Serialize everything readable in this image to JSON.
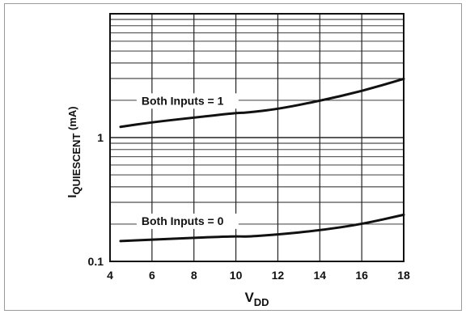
{
  "chart_data": {
    "type": "line",
    "xlabel": {
      "main": "V",
      "sub": "DD"
    },
    "ylabel": {
      "main": "I",
      "sub": "QUIESCENT",
      "unit": " (mA)"
    },
    "xlim": [
      4,
      18
    ],
    "ylim": [
      0.1,
      10
    ],
    "yscale": "log",
    "grid": true,
    "x_ticks": [
      "4",
      "6",
      "8",
      "10",
      "12",
      "14",
      "16",
      "18"
    ],
    "y_ticks": [
      "0.1",
      "1"
    ],
    "series": [
      {
        "name": "Both Inputs = 1",
        "x": [
          4.5,
          6,
          8,
          10,
          10.5,
          12,
          14,
          16,
          18
        ],
        "y": [
          1.22,
          1.33,
          1.45,
          1.58,
          1.59,
          1.7,
          1.98,
          2.37,
          2.98
        ]
      },
      {
        "name": "Both Inputs = 0",
        "x": [
          4.5,
          6,
          8,
          10,
          10.5,
          12,
          14,
          16,
          18
        ],
        "y": [
          0.146,
          0.15,
          0.155,
          0.16,
          0.158,
          0.165,
          0.178,
          0.2,
          0.238
        ]
      }
    ]
  }
}
